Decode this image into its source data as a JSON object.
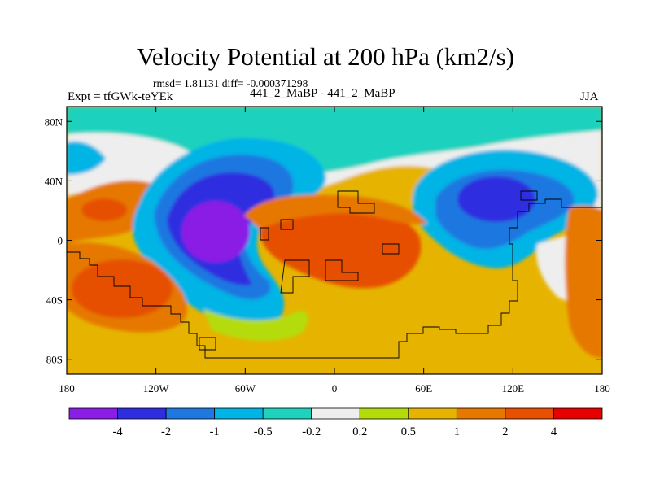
{
  "title": "Velocity Potential at 200 hPa (km2/s)",
  "stats_text": "rmsd= 1.81131 diff= -0.000371298",
  "left_label": "Expt = tfGWk-teYEk",
  "center_label": "441_2_MaBP - 441_2_MaBP",
  "right_label": "JJA",
  "map": {
    "lon_ticks": [
      {
        "value": -180,
        "label": "180"
      },
      {
        "value": -120,
        "label": "120W"
      },
      {
        "value": -60,
        "label": "60W"
      },
      {
        "value": 0,
        "label": "0"
      },
      {
        "value": 60,
        "label": "60E"
      },
      {
        "value": 120,
        "label": "120E"
      },
      {
        "value": 180,
        "label": "180"
      }
    ],
    "lat_ticks": [
      {
        "value": 80,
        "label": "80N"
      },
      {
        "value": 40,
        "label": "40N"
      },
      {
        "value": 0,
        "label": "0"
      },
      {
        "value": -40,
        "label": "40S"
      },
      {
        "value": -80,
        "label": "80S"
      }
    ],
    "lon_range": [
      -180,
      180
    ],
    "lat_range": [
      -90,
      90
    ]
  },
  "colorbar": {
    "colors": [
      "#8a1ee6",
      "#2e2ee0",
      "#1e78e0",
      "#00b4e6",
      "#1ed2be",
      "#eeeeee",
      "#b4dc0a",
      "#e6b400",
      "#e67800",
      "#e65000",
      "#e60000"
    ],
    "labels": [
      "-4",
      "-2",
      "-1",
      "-0.5",
      "-0.2",
      "0.2",
      "0.5",
      "1",
      "2",
      "4"
    ]
  }
}
